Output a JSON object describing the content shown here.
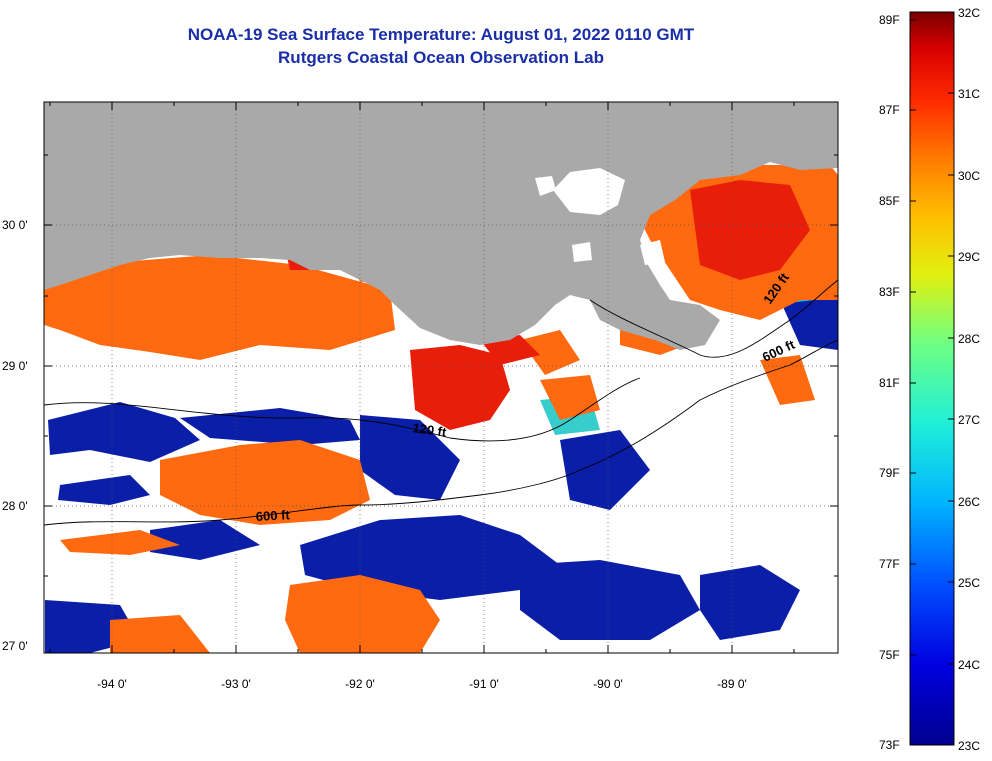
{
  "header": {
    "title_line1": "NOAA-19 Sea Surface Temperature:  August 01, 2022 0110 GMT",
    "title_line2": "Rutgers Coastal Ocean Observation Lab"
  },
  "map": {
    "lat_labels": [
      "30 0'",
      "29 0'",
      "28 0'",
      "27 0'"
    ],
    "lon_labels": [
      "-94 0'",
      "-93 0'",
      "-92 0'",
      "-91 0'",
      "-90 0'",
      "-89 0'"
    ],
    "lat_values": [
      30,
      29,
      28,
      27
    ],
    "lon_values": [
      -94,
      -93,
      -92,
      -91,
      -90,
      -89
    ],
    "contour_labels": [
      "120 ft",
      "600 ft",
      "120 ft",
      "600 ft"
    ],
    "colors": {
      "land": "#a9a9a9",
      "no_data": "#ffffff",
      "title": "#1a2ea8"
    }
  },
  "colorbar": {
    "fahrenheit_labels": [
      "89F",
      "87F",
      "85F",
      "83F",
      "81F",
      "79F",
      "77F",
      "75F",
      "73F"
    ],
    "celsius_labels": [
      "32C",
      "31C",
      "30C",
      "29C",
      "28C",
      "27C",
      "26C",
      "25C",
      "24C",
      "23C"
    ],
    "range_c": [
      23,
      32
    ],
    "range_f": [
      73,
      89
    ]
  }
}
